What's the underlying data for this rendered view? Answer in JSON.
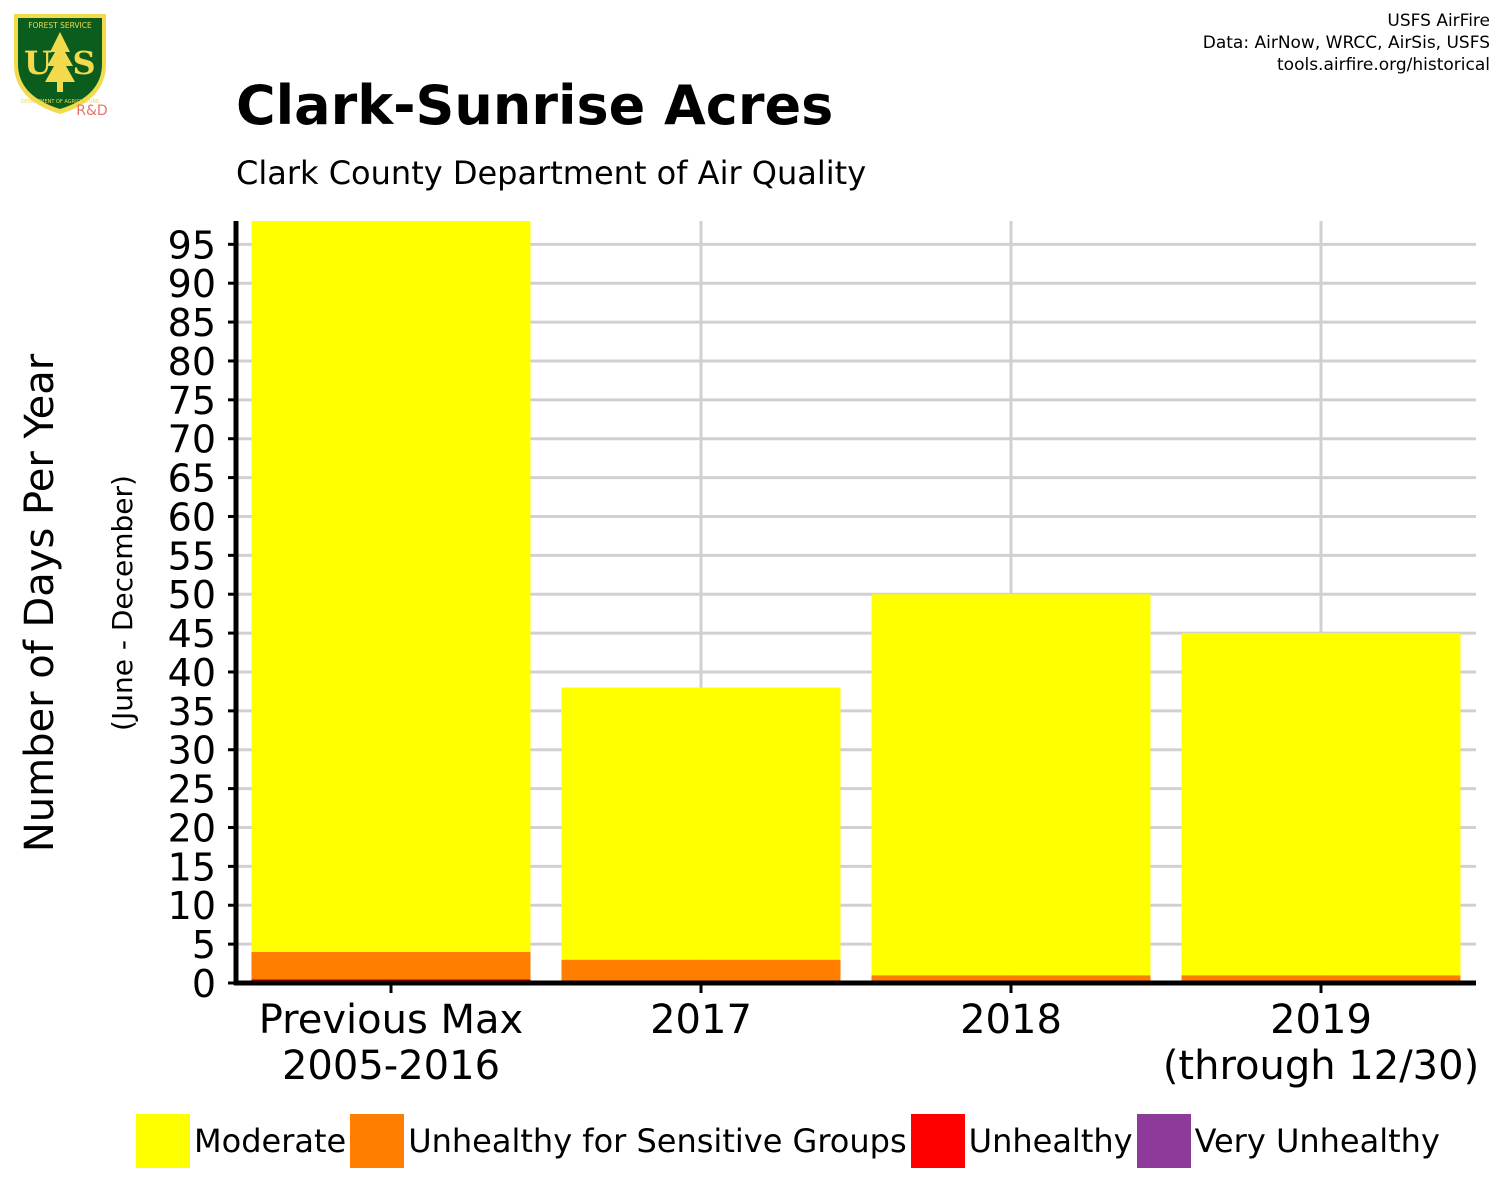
{
  "logo": {
    "top_text": "FOREST SERVICE",
    "letters": "US",
    "bottom_text": "DEPARTMENT OF AGRICULTURE",
    "rd_label": "R&D",
    "colors": {
      "shield": "#0b5d1e",
      "gold": "#f3d94c",
      "rd": "#e8736a"
    }
  },
  "credits": {
    "lines": [
      "USFS AirFire",
      "Data: AirNow, WRCC, AirSis, USFS",
      "tools.airfire.org/historical"
    ]
  },
  "header": {
    "title": "Clark-Sunrise Acres",
    "subtitle": "Clark County Department of Air Quality"
  },
  "chart_data": {
    "type": "bar",
    "stacked": true,
    "categories": [
      "Previous Max\n2005-2016",
      "2017",
      "2018",
      "2019\n(through 12/30)"
    ],
    "ylabel": "Number of Days Per Year",
    "ylabel_sub": "(June - December)",
    "ylim": [
      0,
      98
    ],
    "yticks": [
      0,
      5,
      10,
      15,
      20,
      25,
      30,
      35,
      40,
      45,
      50,
      55,
      60,
      65,
      70,
      75,
      80,
      85,
      90,
      95
    ],
    "grid": true,
    "legend_position": "bottom",
    "series": [
      {
        "name": "Very Unhealthy",
        "color": "#8e3a9b",
        "values": [
          0,
          0,
          0,
          0
        ]
      },
      {
        "name": "Unhealthy",
        "color": "#ff0000",
        "values": [
          0.5,
          0,
          0,
          0
        ]
      },
      {
        "name": "Unhealthy for Sensitive Groups",
        "color": "#ff7e00",
        "values": [
          3.5,
          3,
          1,
          1
        ]
      },
      {
        "name": "Moderate",
        "color": "#ffff00",
        "values": [
          94,
          35,
          49,
          44
        ]
      }
    ],
    "legend_order": [
      "Moderate",
      "Unhealthy for Sensitive Groups",
      "Unhealthy",
      "Very Unhealthy"
    ]
  }
}
